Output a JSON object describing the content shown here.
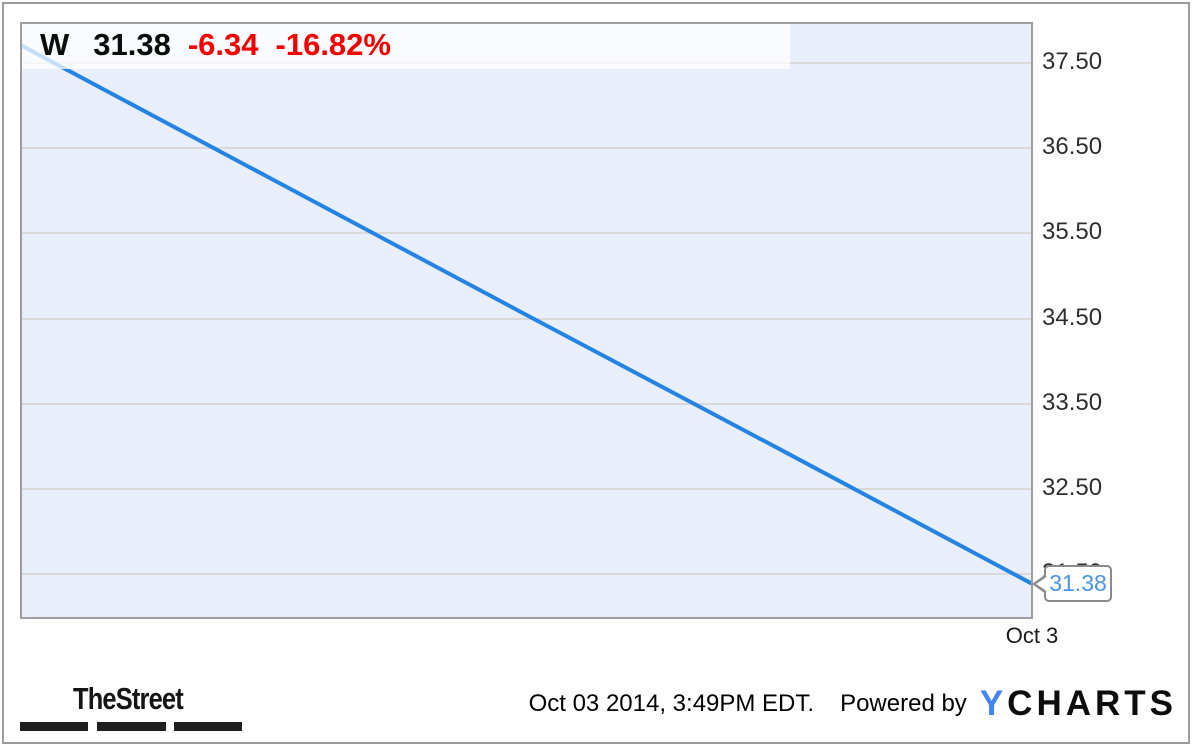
{
  "chart_data": {
    "type": "line",
    "title": "",
    "series": [
      {
        "name": "W",
        "color": "#2583e2",
        "points": [
          {
            "x_frac": 0.0,
            "value": 37.69
          },
          {
            "x_frac": 0.25,
            "value": 36.11
          },
          {
            "x_frac": 0.5,
            "value": 34.53
          },
          {
            "x_frac": 0.75,
            "value": 32.96
          },
          {
            "x_frac": 1.0,
            "value": 31.38
          }
        ]
      }
    ],
    "y_ticks": [
      37.5,
      36.5,
      35.5,
      34.5,
      33.5,
      32.5,
      31.5
    ],
    "y_tick_labels": [
      "37.50",
      "36.50",
      "35.50",
      "34.50",
      "33.50",
      "32.50",
      "31.50"
    ],
    "x_tick_labels": [
      "Oct 3"
    ],
    "ylim": [
      30.98,
      37.97
    ],
    "grid": true,
    "legend_position": "top-left",
    "last_price_marker": "31.38"
  },
  "legend": {
    "ticker": "W",
    "price": "31.38",
    "change": "-6.34",
    "change_pct": "-16.82%"
  },
  "tooltip": {
    "value": "31.38"
  },
  "x_axis": {
    "label": "Oct 3"
  },
  "footer": {
    "brand": "TheStreet",
    "timestamp": "Oct 03 2014, 3:49PM EDT.",
    "powered_by": "Powered by",
    "ycharts_y": "Y",
    "ycharts_rest": "CHARTS"
  },
  "colors": {
    "line": "#2583e2",
    "negative_change": "#f60000",
    "tooltip_value": "#4a94e8",
    "ycharts_blue": "#4285f4",
    "plot_background": "#e9eefb",
    "gridline": "#d9d9d9"
  }
}
